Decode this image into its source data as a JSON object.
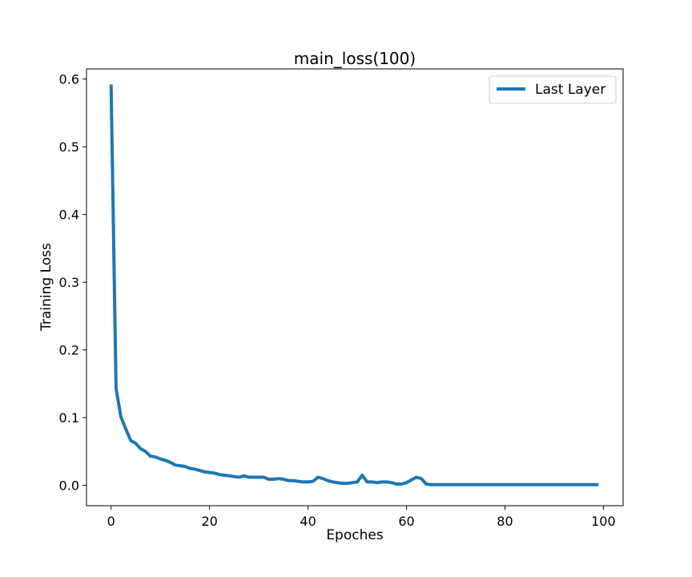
{
  "chart_data": {
    "type": "line",
    "title": "main_loss(100)",
    "xlabel": "Epoches",
    "ylabel": "Training Loss",
    "xlim": [
      -5,
      104
    ],
    "ylim": [
      -0.03,
      0.615
    ],
    "xticks": [
      0,
      20,
      40,
      60,
      80,
      100
    ],
    "yticks": [
      0.0,
      0.1,
      0.2,
      0.3,
      0.4,
      0.5,
      0.6
    ],
    "xtick_labels": [
      "0",
      "20",
      "40",
      "60",
      "80",
      "100"
    ],
    "ytick_labels": [
      "0.0",
      "0.1",
      "0.2",
      "0.3",
      "0.4",
      "0.5",
      "0.6"
    ],
    "grid": false,
    "legend": "top-right",
    "series": [
      {
        "name": "Last Layer",
        "color": "#1f77b4",
        "x": [
          0,
          1,
          2,
          3,
          4,
          5,
          6,
          7,
          8,
          9,
          10,
          11,
          12,
          13,
          14,
          15,
          16,
          17,
          18,
          19,
          20,
          21,
          22,
          23,
          24,
          25,
          26,
          27,
          28,
          29,
          30,
          31,
          32,
          33,
          34,
          35,
          36,
          37,
          38,
          39,
          40,
          41,
          42,
          43,
          44,
          45,
          46,
          47,
          48,
          49,
          50,
          51,
          52,
          53,
          54,
          55,
          56,
          57,
          58,
          59,
          60,
          61,
          62,
          63,
          64,
          65,
          66,
          67,
          68,
          69,
          70,
          71,
          72,
          73,
          74,
          75,
          76,
          77,
          78,
          79,
          80,
          81,
          82,
          83,
          84,
          85,
          86,
          87,
          88,
          89,
          90,
          91,
          92,
          93,
          94,
          95,
          96,
          97,
          98,
          99
        ],
        "y": [
          0.592,
          0.143,
          0.101,
          0.083,
          0.066,
          0.062,
          0.054,
          0.05,
          0.043,
          0.042,
          0.039,
          0.037,
          0.034,
          0.03,
          0.029,
          0.028,
          0.025,
          0.024,
          0.022,
          0.02,
          0.019,
          0.018,
          0.016,
          0.015,
          0.014,
          0.013,
          0.012,
          0.014,
          0.012,
          0.012,
          0.012,
          0.012,
          0.009,
          0.009,
          0.01,
          0.009,
          0.007,
          0.007,
          0.006,
          0.005,
          0.005,
          0.006,
          0.012,
          0.01,
          0.007,
          0.005,
          0.004,
          0.003,
          0.003,
          0.004,
          0.005,
          0.015,
          0.005,
          0.005,
          0.004,
          0.005,
          0.005,
          0.004,
          0.002,
          0.002,
          0.004,
          0.008,
          0.012,
          0.01,
          0.002,
          0.001,
          0.001,
          0.001,
          0.001,
          0.001,
          0.001,
          0.001,
          0.001,
          0.001,
          0.001,
          0.001,
          0.001,
          0.001,
          0.001,
          0.001,
          0.001,
          0.001,
          0.001,
          0.001,
          0.001,
          0.001,
          0.001,
          0.001,
          0.001,
          0.001,
          0.001,
          0.001,
          0.001,
          0.001,
          0.001,
          0.001,
          0.001,
          0.001,
          0.001,
          0.001
        ]
      }
    ]
  }
}
